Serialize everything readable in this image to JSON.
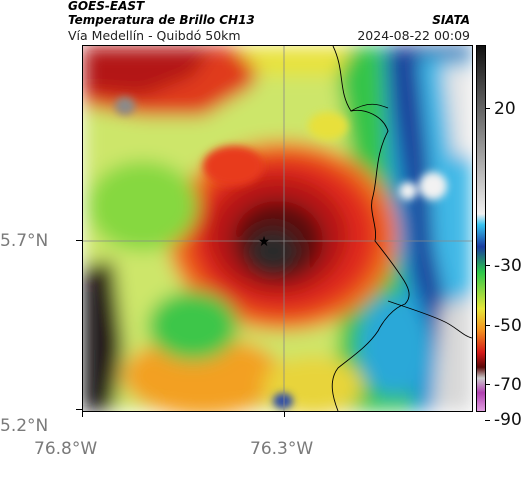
{
  "header": {
    "satellite": "GOES-EAST",
    "product": "Temperatura de Brillo CH13",
    "route": "Vía Medellín - Quibdó 50km",
    "org": "SIATA",
    "timestamp": "2024-08-22 00:09"
  },
  "axes": {
    "lat_ticks": [
      "5.7°N",
      "5.2°N"
    ],
    "lon_ticks": [
      "76.8°W",
      "76.3°W"
    ]
  },
  "colorbar": {
    "ticks": [
      "20",
      "-30",
      "-50",
      "-70",
      "-90"
    ],
    "unit": ""
  },
  "map": {
    "marker": "star",
    "gridlines": true
  }
}
